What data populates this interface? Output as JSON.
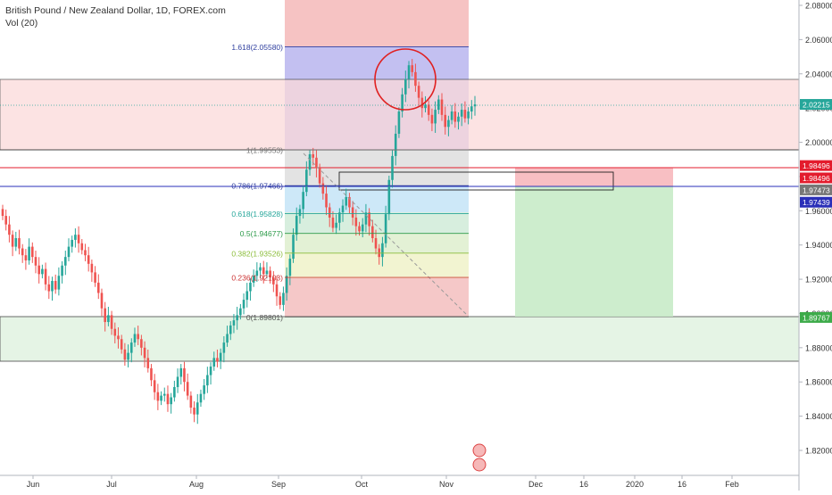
{
  "legend": {
    "symbol_line": "British Pound / New Zealand Dollar, 1D, FOREX.com",
    "volume_line": "Vol (20)"
  },
  "colors": {
    "up": "#26a69a",
    "down": "#ef5350",
    "fib_level": "#2f3f9f",
    "resistance_zone": "#fbdada",
    "support_zone": "#e3f3e3",
    "stop_zone": "#f7b8bd",
    "target_zone": "#c8ebc8",
    "highlight_circle": "#e02020",
    "last_price_tag": "#26a69a",
    "red_tag": "#e31c2d",
    "blue_tag": "#2a2fb8",
    "green_tag": "#3dab4a"
  },
  "price_axis_ticks": [
    "2.08000",
    "2.06000",
    "2.04000",
    "2.02000",
    "2.00000",
    "1.98000",
    "1.96000",
    "1.94000",
    "1.92000",
    "1.90000",
    "1.88000",
    "1.86000",
    "1.84000",
    "1.82000"
  ],
  "price_tags": [
    {
      "text": "2.02215",
      "price": 2.02215,
      "color": "#26a69a"
    },
    {
      "text": "1.98496",
      "price": 1.9864,
      "color": "#e31c2d"
    },
    {
      "text": "1.98496",
      "price": 1.9792,
      "color": "#e31c2d"
    },
    {
      "text": "1.97473",
      "price": 1.9722,
      "color": "#777777"
    },
    {
      "text": "1.97439",
      "price": 1.965,
      "color": "#2a2fb8"
    },
    {
      "text": "1.89767",
      "price": 1.89767,
      "color": "#3dab4a"
    }
  ],
  "time_axis_labels": [
    "Jun",
    "Jul",
    "Aug",
    "Sep",
    "Oct",
    "Nov",
    "Dec",
    "16",
    "2020",
    "16",
    "Feb"
  ],
  "fib_levels": [
    {
      "label": "1.618(2.05580)",
      "price": 2.0558
    },
    {
      "label": "1(1.99553)",
      "price": 1.99553
    },
    {
      "label": "0.786(1.97466)",
      "price": 1.97466
    },
    {
      "label": "0.618(1.95828)",
      "price": 1.95828
    },
    {
      "label": "0.5(1.94677)",
      "price": 1.94677
    },
    {
      "label": "0.382(1.93526)",
      "price": 1.93526
    },
    {
      "label": "0.236(1.92103)",
      "price": 1.92103
    },
    {
      "label": "0(1.89801)",
      "price": 1.89801
    }
  ],
  "chart_data": {
    "type": "candlestick",
    "title": "British Pound / New Zealand Dollar, 1D, FOREX.com",
    "y_range": [
      1.81,
      2.085
    ],
    "price_axis_ticks": [
      2.08,
      2.06,
      2.04,
      2.02,
      2.0,
      1.98,
      1.96,
      1.94,
      1.92,
      1.9,
      1.88,
      1.86,
      1.84,
      1.82
    ],
    "x_axis_labels": [
      "Jun",
      "Jul",
      "Aug",
      "Sep",
      "Oct",
      "Nov",
      "Dec",
      "16",
      "2020",
      "16",
      "Feb"
    ],
    "last_price": 2.02215,
    "close_path": [
      1.957,
      1.952,
      1.946,
      1.939,
      1.944,
      1.938,
      1.934,
      1.931,
      1.939,
      1.933,
      1.928,
      1.923,
      1.926,
      1.917,
      1.913,
      1.919,
      1.914,
      1.922,
      1.928,
      1.933,
      1.939,
      1.943,
      1.946,
      1.941,
      1.937,
      1.934,
      1.929,
      1.924,
      1.918,
      1.912,
      1.903,
      1.895,
      1.899,
      1.891,
      1.887,
      1.885,
      1.879,
      1.873,
      1.877,
      1.883,
      1.888,
      1.885,
      1.88,
      1.874,
      1.868,
      1.861,
      1.854,
      1.849,
      1.852,
      1.853,
      1.847,
      1.851,
      1.857,
      1.863,
      1.868,
      1.86,
      1.852,
      1.845,
      1.841,
      1.848,
      1.853,
      1.858,
      1.864,
      1.869,
      1.874,
      1.872,
      1.877,
      1.883,
      1.888,
      1.893,
      1.896,
      1.899,
      1.903,
      1.908,
      1.913,
      1.918,
      1.922,
      1.925,
      1.927,
      1.923,
      1.925,
      1.921,
      1.917,
      1.91,
      1.905,
      1.912,
      1.922,
      1.932,
      1.946,
      1.957,
      1.961,
      1.971,
      1.984,
      1.993,
      1.991,
      1.985,
      1.976,
      1.97,
      1.962,
      1.956,
      1.95,
      1.953,
      1.959,
      1.963,
      1.968,
      1.962,
      1.956,
      1.951,
      1.948,
      1.952,
      1.959,
      1.951,
      1.944,
      1.938,
      1.933,
      1.941,
      1.958,
      1.978,
      1.992,
      2.005,
      2.018,
      2.028,
      2.037,
      2.045,
      2.041,
      2.033,
      2.026,
      2.02,
      2.022,
      2.016,
      2.011,
      2.019,
      2.025,
      2.016,
      2.009,
      2.013,
      2.018,
      2.012,
      2.015,
      2.019,
      2.014,
      2.018,
      2.021,
      2.02215
    ]
  }
}
